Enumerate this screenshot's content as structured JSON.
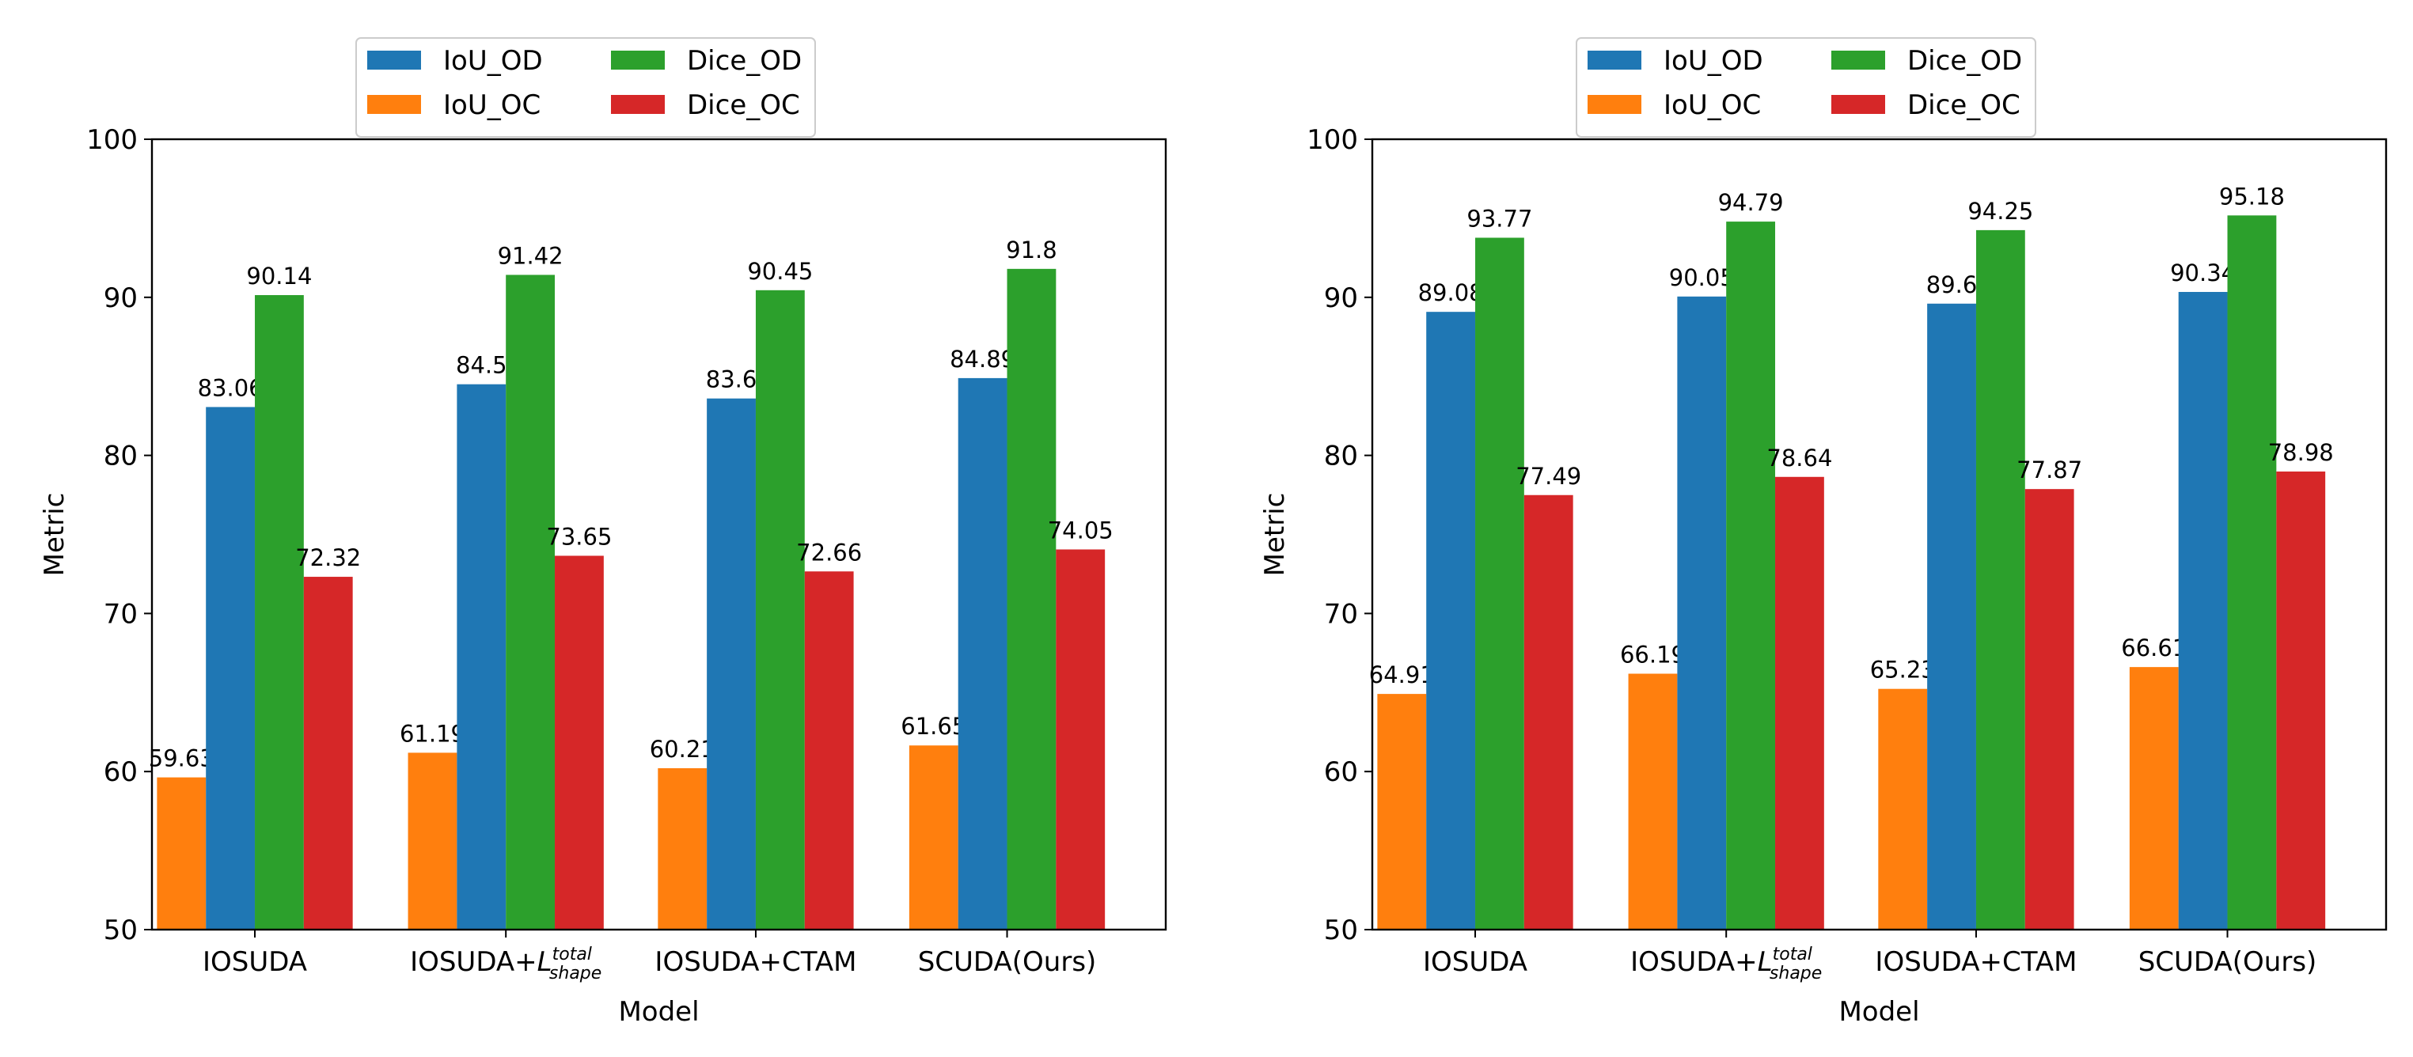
{
  "chart_data": [
    {
      "type": "bar",
      "categories": [
        "IOSUDA",
        "IOSUDA+L_shape^total",
        "IOSUDA+CTAM",
        "SCUDA(Ours)"
      ],
      "category_labels": [
        {
          "base": "IOSUDA"
        },
        {
          "base": "IOSUDA+",
          "math": "L",
          "sup": "total",
          "sub": "shape"
        },
        {
          "base": "IOSUDA+CTAM"
        },
        {
          "base": "SCUDA(Ours)"
        }
      ],
      "series": [
        {
          "name": "IoU_OC",
          "color": "#ff7f0e",
          "values": [
            59.63,
            61.19,
            60.21,
            61.65
          ],
          "labels": [
            "59.63",
            "61.19",
            "60.21",
            "61.65"
          ]
        },
        {
          "name": "IoU_OD",
          "color": "#1f77b4",
          "values": [
            83.06,
            84.5,
            83.6,
            84.89
          ],
          "labels": [
            "83.06",
            "84.5",
            "83.6",
            "84.89"
          ]
        },
        {
          "name": "Dice_OD",
          "color": "#2ca02c",
          "values": [
            90.14,
            91.42,
            90.45,
            91.8
          ],
          "labels": [
            "90.14",
            "91.42",
            "90.45",
            "91.8"
          ]
        },
        {
          "name": "Dice_OC",
          "color": "#d62728",
          "values": [
            72.32,
            73.65,
            72.66,
            74.05
          ],
          "labels": [
            "72.32",
            "73.65",
            "72.66",
            "74.05"
          ]
        }
      ],
      "legend_order": [
        "IoU_OD",
        "Dice_OD",
        "IoU_OC",
        "Dice_OC"
      ],
      "legend_position": "top-center, above plot",
      "xlabel": "Model",
      "ylabel": "Metric",
      "ylim": [
        50,
        100
      ],
      "yticks": [
        50,
        60,
        70,
        80,
        90,
        100
      ],
      "grid": false
    },
    {
      "type": "bar",
      "categories": [
        "IOSUDA",
        "IOSUDA+L_shape^total",
        "IOSUDA+CTAM",
        "SCUDA(Ours)"
      ],
      "category_labels": [
        {
          "base": "IOSUDA"
        },
        {
          "base": "IOSUDA+",
          "math": "L",
          "sup": "total",
          "sub": "shape"
        },
        {
          "base": "IOSUDA+CTAM"
        },
        {
          "base": "SCUDA(Ours)"
        }
      ],
      "series": [
        {
          "name": "IoU_OC",
          "color": "#ff7f0e",
          "values": [
            64.91,
            66.19,
            65.23,
            66.61
          ],
          "labels": [
            "64.91",
            "66.19",
            "65.23",
            "66.61"
          ]
        },
        {
          "name": "IoU_OD",
          "color": "#1f77b4",
          "values": [
            89.08,
            90.05,
            89.6,
            90.34
          ],
          "labels": [
            "89.08",
            "90.05",
            "89.6",
            "90.34"
          ]
        },
        {
          "name": "Dice_OD",
          "color": "#2ca02c",
          "values": [
            93.77,
            94.79,
            94.25,
            95.18
          ],
          "labels": [
            "93.77",
            "94.79",
            "94.25",
            "95.18"
          ]
        },
        {
          "name": "Dice_OC",
          "color": "#d62728",
          "values": [
            77.49,
            78.64,
            77.87,
            78.98
          ],
          "labels": [
            "77.49",
            "78.64",
            "77.87",
            "78.98"
          ]
        }
      ],
      "legend_order": [
        "IoU_OD",
        "Dice_OD",
        "IoU_OC",
        "Dice_OC"
      ],
      "legend_position": "top-center, above plot",
      "xlabel": "Model",
      "ylabel": "Metric",
      "ylim": [
        50,
        100
      ],
      "yticks": [
        50,
        60,
        70,
        80,
        90,
        100
      ],
      "grid": false
    }
  ]
}
